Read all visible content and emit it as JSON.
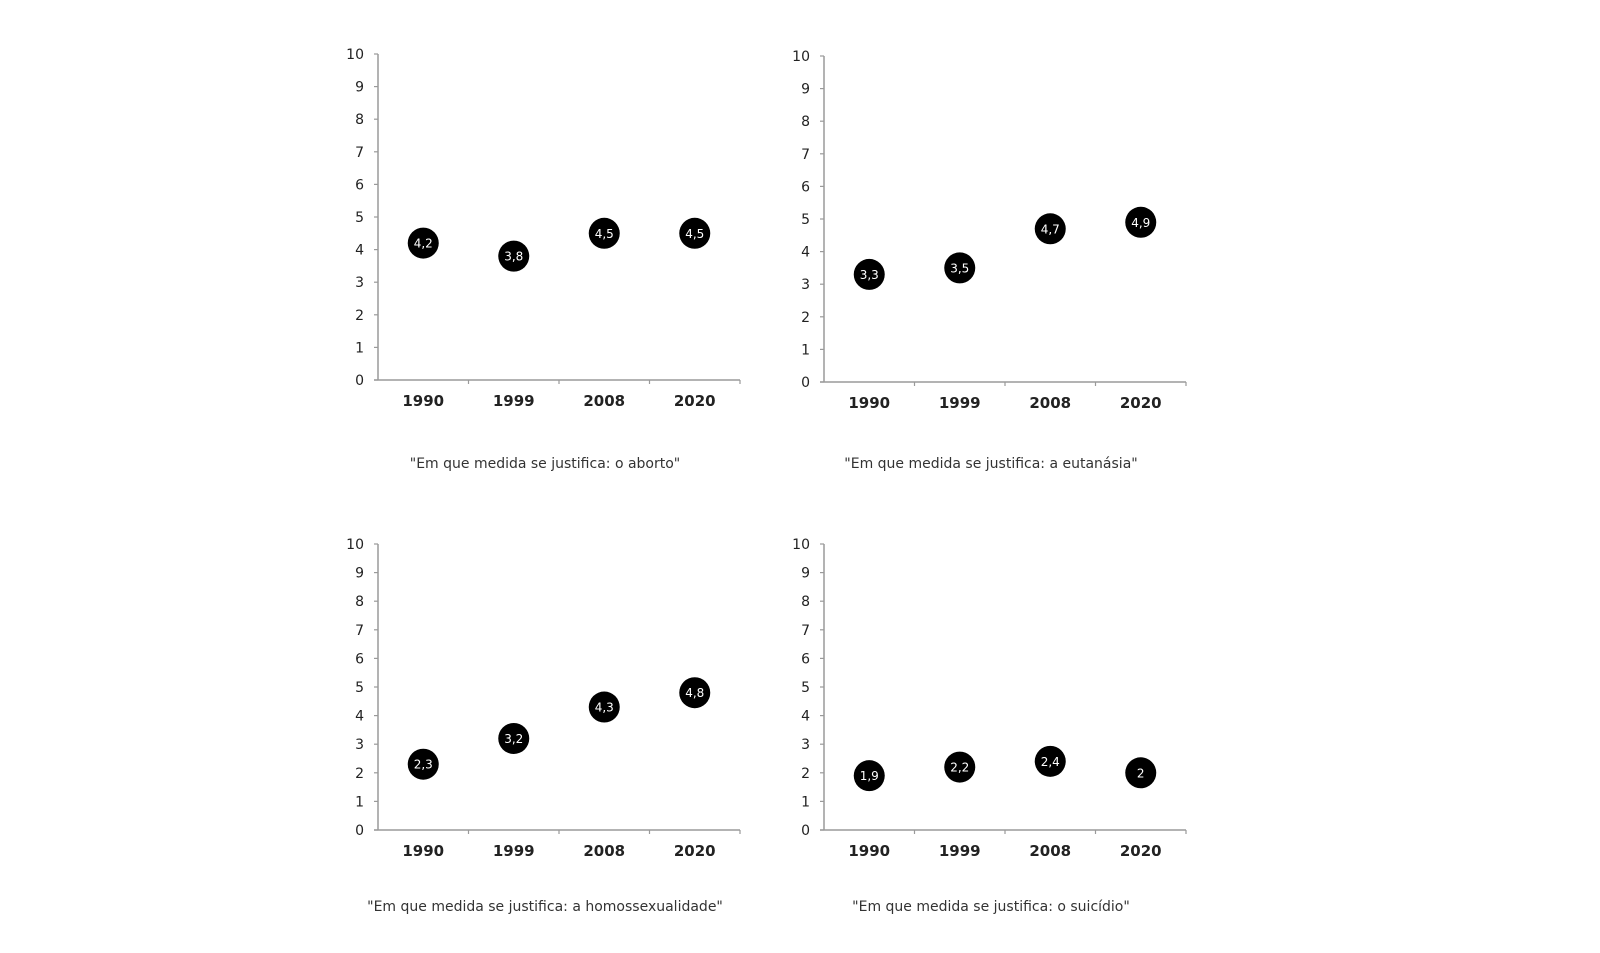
{
  "chart_data": [
    {
      "type": "scatter",
      "title": "\"Em que medida se justifica: o aborto\"",
      "categories": [
        "1990",
        "1999",
        "2008",
        "2020"
      ],
      "values": [
        4.2,
        3.8,
        4.5,
        4.5
      ],
      "labels": [
        "4,2",
        "3,8",
        "4,5",
        "4,5"
      ],
      "xlabel": "",
      "ylabel": "",
      "ylim": [
        0,
        10
      ],
      "yticks": [
        "0",
        "1",
        "2",
        "3",
        "4",
        "5",
        "6",
        "7",
        "8",
        "9",
        "10"
      ],
      "grid": false,
      "legend": null
    },
    {
      "type": "scatter",
      "title": "\"Em que medida se justifica: a eutanásia\"",
      "categories": [
        "1990",
        "1999",
        "2008",
        "2020"
      ],
      "values": [
        3.3,
        3.5,
        4.7,
        4.9
      ],
      "labels": [
        "3,3",
        "3,5",
        "4,7",
        "4,9"
      ],
      "xlabel": "",
      "ylabel": "",
      "ylim": [
        0,
        10
      ],
      "yticks": [
        "0",
        "1",
        "2",
        "3",
        "4",
        "5",
        "6",
        "7",
        "8",
        "9",
        "10"
      ],
      "grid": false,
      "legend": null
    },
    {
      "type": "scatter",
      "title": "\"Em que medida se justifica: a homossexualidade\"",
      "categories": [
        "1990",
        "1999",
        "2008",
        "2020"
      ],
      "values": [
        2.3,
        3.2,
        4.3,
        4.8
      ],
      "labels": [
        "2,3",
        "3,2",
        "4,3",
        "4,8"
      ],
      "xlabel": "",
      "ylabel": "",
      "ylim": [
        0,
        10
      ],
      "yticks": [
        "0",
        "1",
        "2",
        "3",
        "4",
        "5",
        "6",
        "7",
        "8",
        "9",
        "10"
      ],
      "grid": false,
      "legend": null
    },
    {
      "type": "scatter",
      "title": "\"Em que medida se justifica: o suicídio\"",
      "categories": [
        "1990",
        "1999",
        "2008",
        "2020"
      ],
      "values": [
        1.9,
        2.2,
        2.4,
        2.0
      ],
      "labels": [
        "1,9",
        "2,2",
        "2,4",
        "2"
      ],
      "xlabel": "",
      "ylabel": "",
      "ylim": [
        0,
        10
      ],
      "yticks": [
        "0",
        "1",
        "2",
        "3",
        "4",
        "5",
        "6",
        "7",
        "8",
        "9",
        "10"
      ],
      "grid": false,
      "legend": null
    }
  ],
  "colors": {
    "marker": "#000000",
    "marker_text": "#ffffff",
    "axis": "#9a9a9a",
    "text": "#222222"
  }
}
